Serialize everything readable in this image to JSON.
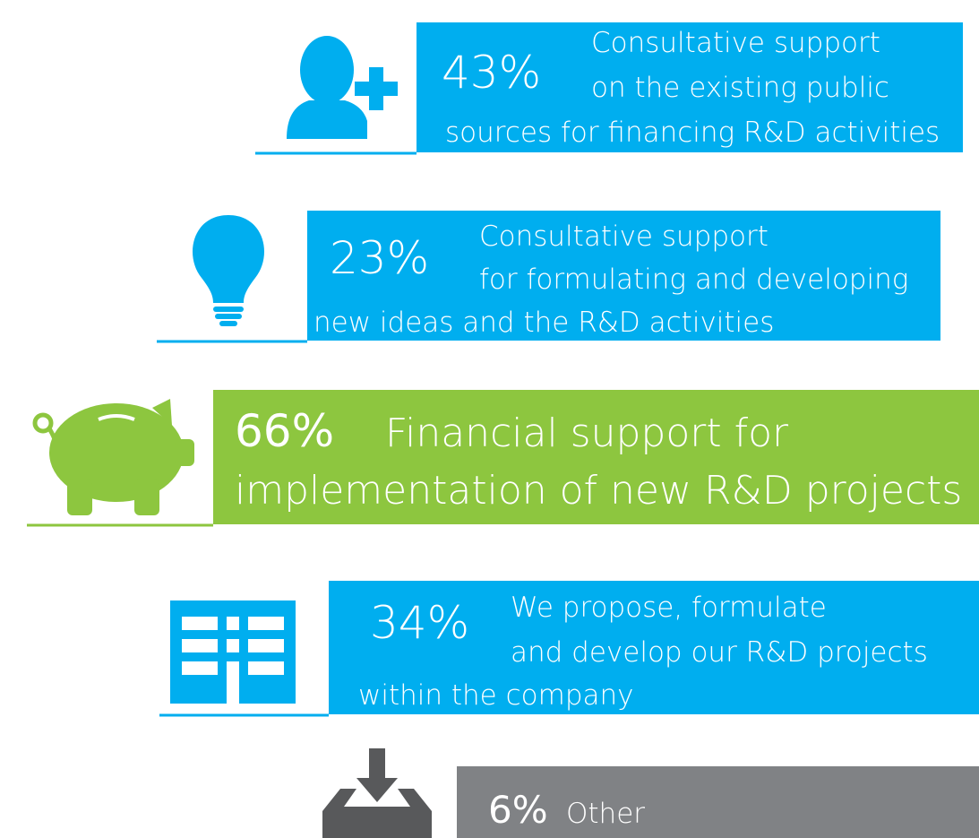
{
  "items": [
    {
      "percent": "43%",
      "lines": [
        "Consultative support",
        "on the existing public",
        "sources for financing R&D activities"
      ]
    },
    {
      "percent": "23%",
      "lines": [
        "Consultative support",
        "for formulating and developing",
        "new ideas and the R&D activities"
      ]
    },
    {
      "percent": "66%",
      "lines": [
        "Financial support for",
        "implementation of new R&D projects"
      ]
    },
    {
      "percent": "34%",
      "lines": [
        "We propose, formulate",
        "and develop our R&D projects",
        "within the company"
      ]
    },
    {
      "percent": "6%",
      "lines": [
        "Other"
      ]
    }
  ]
}
